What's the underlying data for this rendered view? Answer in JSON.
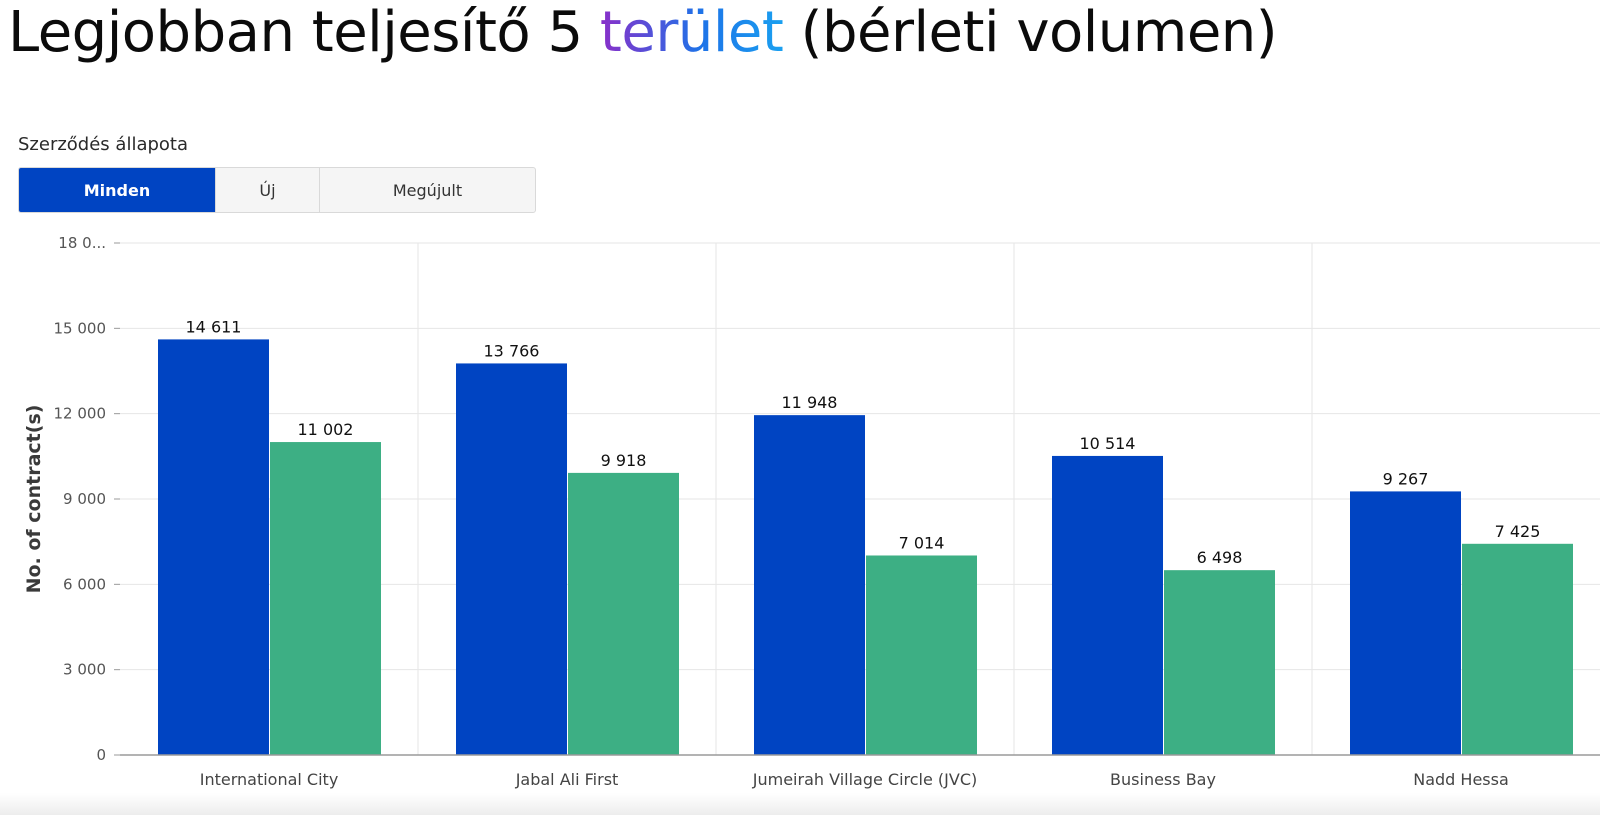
{
  "headline": {
    "prefix": "Legjobban teljesítő 5 ",
    "accent": "terület",
    "suffix": " (bérleti volumen)"
  },
  "filter": {
    "label": "Szerződés állapota",
    "options": [
      "Minden",
      "Új",
      "Megújult"
    ],
    "selected": "Minden"
  },
  "colors": {
    "series_0": "#0044c2",
    "series_1": "#3daf84",
    "active_button": "#0044c2"
  },
  "chart_data": {
    "type": "bar",
    "ylabel": "No. of contract(s)",
    "ylim": [
      0,
      18000
    ],
    "yticks": [
      0,
      3000,
      6000,
      9000,
      12000,
      15000,
      18000
    ],
    "ytick_labels": [
      "0",
      "3 000",
      "6 000",
      "9 000",
      "12 000",
      "15 000",
      "18 0..."
    ],
    "grid": true,
    "categories": [
      "International City",
      "Jabal Ali First",
      "Jumeirah Village Circle (JVC)",
      "Business Bay",
      "Nadd Hessa"
    ],
    "series": [
      {
        "values": [
          14611,
          13766,
          11948,
          10514,
          9267
        ],
        "labels": [
          "14 611",
          "13 766",
          "11 948",
          "10 514",
          "9 267"
        ]
      },
      {
        "values": [
          11002,
          9918,
          7014,
          6498,
          7425
        ],
        "labels": [
          "11 002",
          "9 918",
          "7 014",
          "6 498",
          "7 425"
        ]
      }
    ]
  }
}
